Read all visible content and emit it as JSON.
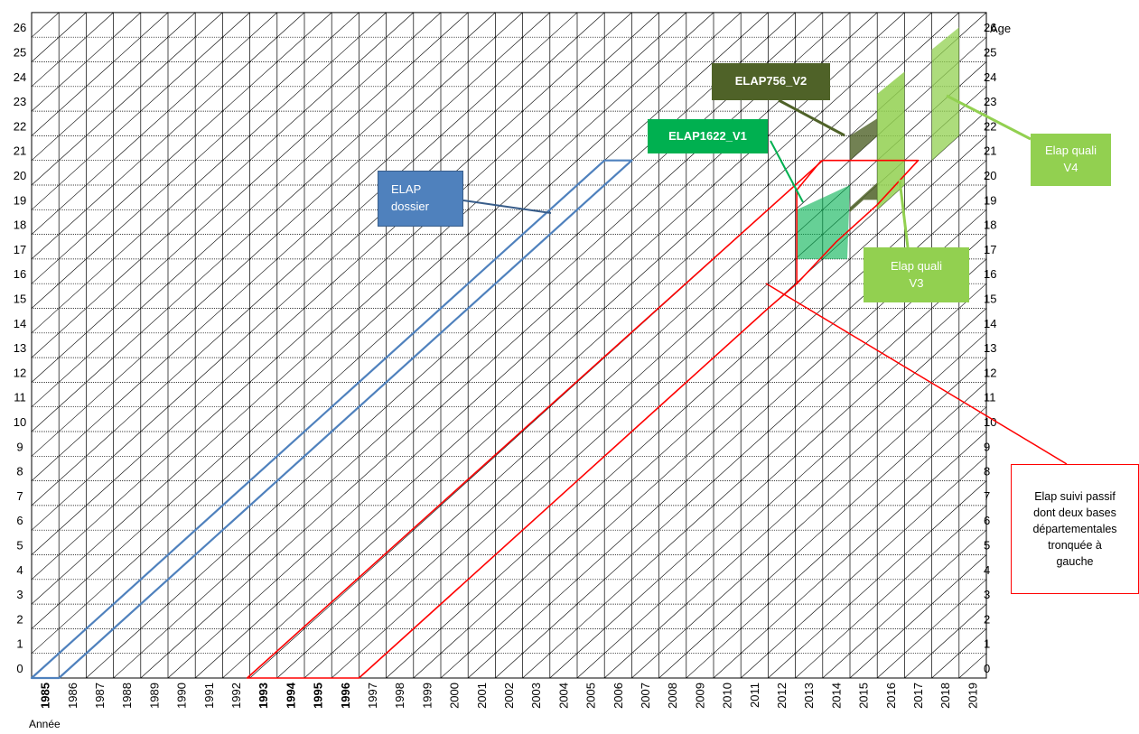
{
  "diagram": {
    "type": "lexis",
    "x_axis_title": "Année",
    "y_axis_title": "Age",
    "years": [
      1985,
      1986,
      1987,
      1988,
      1989,
      1990,
      1991,
      1992,
      1993,
      1994,
      1995,
      1996,
      1997,
      1998,
      1999,
      2000,
      2001,
      2002,
      2003,
      2004,
      2005,
      2006,
      2007,
      2008,
      2009,
      2010,
      2011,
      2012,
      2013,
      2014,
      2015,
      2016,
      2017,
      2018,
      2019
    ],
    "bold_years": [
      1985,
      1993,
      1994,
      1995,
      1996
    ],
    "ages": [
      0,
      1,
      2,
      3,
      4,
      5,
      6,
      7,
      8,
      9,
      10,
      11,
      12,
      13,
      14,
      15,
      16,
      17,
      18,
      19,
      20,
      21,
      22,
      23,
      24,
      25,
      26
    ],
    "colors": {
      "elap_dossier": "#4f81bd",
      "elap_suivi_passif": "#ff0000",
      "elap1622_v1": "#00b050",
      "elap756_v2": "#4f6228",
      "elap_quali": "#92d050",
      "grid": "#000000"
    }
  },
  "labels": {
    "elap_dossier": "ELAP\ndossier",
    "elap1622_v1": "ELAP1622_V1",
    "elap756_v2": "ELAP756_V2",
    "elap_quali_v3": "Elap quali\nV3",
    "elap_quali_v4": "Elap quali\nV4",
    "elap_suivi_passif": "Elap suivi passif\ndont deux bases\ndépartementales\ntronquée à\ngauche"
  }
}
